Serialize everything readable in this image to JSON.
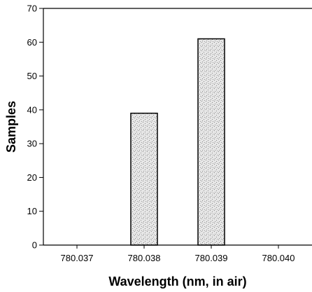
{
  "chart_data": {
    "type": "bar",
    "title": "",
    "xlabel": "Wavelength (nm, in air)",
    "ylabel": "Samples",
    "categories": [
      "780.037",
      "780.038",
      "780.039",
      "780.040"
    ],
    "values": [
      0,
      39,
      61,
      0
    ],
    "ylim": [
      0,
      70
    ],
    "yticks": [
      0,
      10,
      20,
      30,
      40,
      50,
      60,
      70
    ],
    "grid": false,
    "legend": "none",
    "colors": {
      "bar_fill": "#d9d9d9",
      "bar_stroke": "#000000",
      "axis": "#000000"
    }
  }
}
